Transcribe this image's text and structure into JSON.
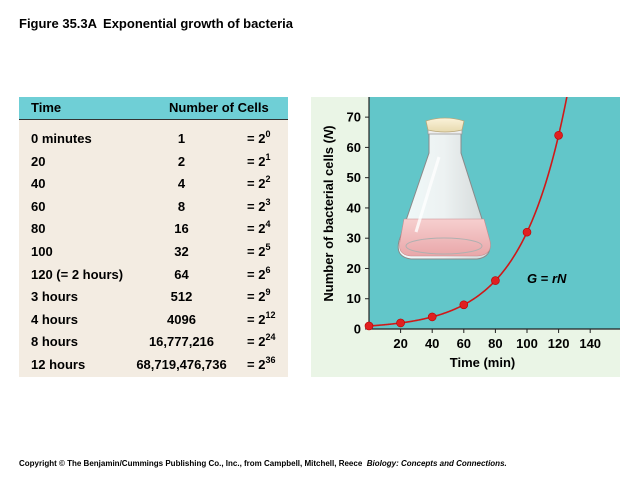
{
  "figure": {
    "number": "Figure 35.3A",
    "title": "Exponential growth of bacteria"
  },
  "table": {
    "headers": {
      "time": "Time",
      "cells": "Number of Cells"
    },
    "rows": [
      {
        "time": "0 minutes",
        "cells": "1",
        "base": "= 2",
        "exp": "0"
      },
      {
        "time": "20",
        "cells": "2",
        "base": "= 2",
        "exp": "1"
      },
      {
        "time": "40",
        "cells": "4",
        "base": "= 2",
        "exp": "2"
      },
      {
        "time": "60",
        "cells": "8",
        "base": "= 2",
        "exp": "3"
      },
      {
        "time": "80",
        "cells": "16",
        "base": "= 2",
        "exp": "4"
      },
      {
        "time": "100",
        "cells": "32",
        "base": "= 2",
        "exp": "5"
      },
      {
        "time": "120 (= 2 hours)",
        "cells": "64",
        "base": "= 2",
        "exp": "6"
      },
      {
        "time": "3 hours",
        "cells": "512",
        "base": "= 2",
        "exp": "9"
      },
      {
        "time": "4 hours",
        "cells": "4096",
        "base": "= 2",
        "exp": "12"
      },
      {
        "time": "8 hours",
        "cells": "16,777,216",
        "base": "= 2",
        "exp": "24"
      },
      {
        "time": "12 hours",
        "cells": "68,719,476,736",
        "base": "= 2",
        "exp": "36"
      }
    ]
  },
  "chart_data": {
    "type": "line",
    "x": [
      0,
      20,
      40,
      60,
      80,
      100,
      120
    ],
    "y": [
      1,
      2,
      4,
      8,
      16,
      32,
      64
    ],
    "xlim": [
      0,
      150
    ],
    "ylim": [
      0,
      75
    ],
    "xticks": [
      20,
      40,
      60,
      80,
      100,
      120,
      140
    ],
    "yticks": [
      0,
      10,
      20,
      30,
      40,
      50,
      60,
      70
    ],
    "xlabel": "Time (min)",
    "ylabel_prefix": "Number of bacterial cells (",
    "ylabel_var": "N",
    "ylabel_suffix": ")",
    "annotation": {
      "G": "G",
      "eq": " = ",
      "r": "r",
      "N": "N"
    },
    "curve": "exponential",
    "grid": false,
    "colors": {
      "background": "#eaf5e6",
      "plot": "#62c6c9",
      "line": "#d01818",
      "marker": "#e02020"
    }
  },
  "illustration": {
    "icon": "flask-icon"
  },
  "copyright": {
    "text": "Copyright © The Benjamin/Cummings Publishing Co., Inc., from Campbell, Mitchell, Reece",
    "book": "Biology: Concepts and Connections."
  }
}
